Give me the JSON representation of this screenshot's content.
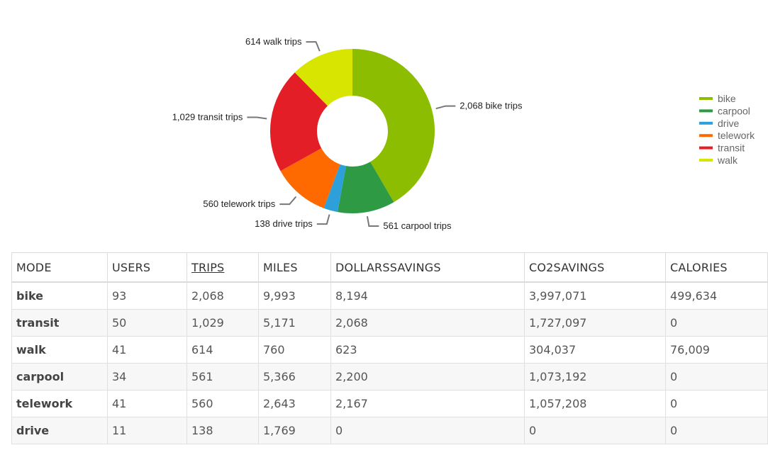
{
  "chart_data": {
    "type": "pie",
    "variant": "donut",
    "slices": [
      {
        "name": "bike",
        "value": 2068,
        "label": "2,068 bike trips",
        "color": "#8cbd00"
      },
      {
        "name": "carpool",
        "value": 561,
        "label": "561 carpool trips",
        "color": "#2e9b44"
      },
      {
        "name": "drive",
        "value": 138,
        "label": "138 drive trips",
        "color": "#2d9fd9"
      },
      {
        "name": "telework",
        "value": 560,
        "label": "560 telework trips",
        "color": "#ff6a00"
      },
      {
        "name": "transit",
        "value": 1029,
        "label": "1,029 transit trips",
        "color": "#e41e26"
      },
      {
        "name": "walk",
        "value": 614,
        "label": "614 walk trips",
        "color": "#d7e500"
      }
    ],
    "legend_position": "right"
  },
  "table": {
    "headers": [
      "MODE",
      "USERS",
      "TRIPS",
      "MILES",
      "DOLLARSSAVINGS",
      "CO2SAVINGS",
      "CALORIES"
    ],
    "rows": [
      [
        "bike",
        "93",
        "2,068",
        "9,993",
        "8,194",
        "3,997,071",
        "499,634"
      ],
      [
        "transit",
        "50",
        "1,029",
        "5,171",
        "2,068",
        "1,727,097",
        "0"
      ],
      [
        "walk",
        "41",
        "614",
        "760",
        "623",
        "304,037",
        "76,009"
      ],
      [
        "carpool",
        "34",
        "561",
        "5,366",
        "2,200",
        "1,073,192",
        "0"
      ],
      [
        "telework",
        "41",
        "560",
        "2,643",
        "2,167",
        "1,057,208",
        "0"
      ],
      [
        "drive",
        "11",
        "138",
        "1,769",
        "0",
        "0",
        "0"
      ]
    ]
  }
}
